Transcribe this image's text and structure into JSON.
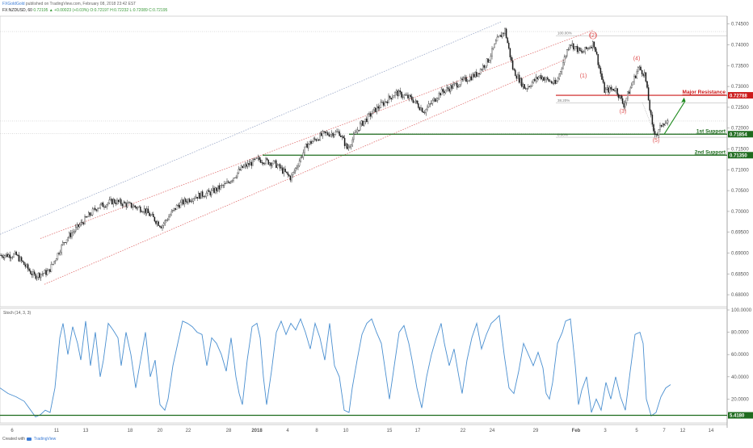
{
  "header": {
    "author": "FXGoldGold",
    "published": "published on TradingView.com, February 08, 2018 23:42 EST",
    "symbol": "FX:NZDUSD, 60",
    "quote": "0.72195 ▲ +0.00023 (+0.03%) O:0.72197 H:0.72232 L:0.72089 C:0.72195"
  },
  "footer": {
    "created_with": "Created with",
    "brand": "TradingView"
  },
  "colors": {
    "candle": "#1a1a1a",
    "resistance": "#cc1a1a",
    "support": "#1e6b1e",
    "channel": "#e07070",
    "stoch": "#4a8fd0",
    "wave_label": "#e05050",
    "grid": "#c8c8c8"
  },
  "chart_data": [
    {
      "type": "candlestick",
      "title": "",
      "ylim": [
        0.6775,
        0.7465
      ],
      "y_ticks": [
        "0.74500",
        "0.74000",
        "0.73500",
        "0.73000",
        "0.72500",
        "0.72000",
        "0.71500",
        "0.71000",
        "0.70500",
        "0.70000",
        "0.69500",
        "0.69000",
        "0.68500",
        "0.68000"
      ],
      "y_tick_values": [
        0.745,
        0.74,
        0.735,
        0.73,
        0.725,
        0.72,
        0.715,
        0.71,
        0.705,
        0.7,
        0.695,
        0.69,
        0.685,
        0.68
      ],
      "x_ticks": [
        "6",
        "11",
        "13",
        "18",
        "20",
        "22",
        "28",
        "2018",
        "4",
        "8",
        "10",
        "15",
        "17",
        "22",
        "24",
        "29",
        "Feb",
        "3",
        "5",
        "7",
        "12",
        "14"
      ],
      "path": [
        [
          0,
          0.6895
        ],
        [
          20,
          0.6895
        ],
        [
          42,
          0.6845
        ],
        [
          60,
          0.6855
        ],
        [
          80,
          0.693
        ],
        [
          100,
          0.697
        ],
        [
          120,
          0.701
        ],
        [
          140,
          0.7025
        ],
        [
          160,
          0.7015
        ],
        [
          178,
          0.7005
        ],
        [
          200,
          0.6965
        ],
        [
          220,
          0.7015
        ],
        [
          240,
          0.7035
        ],
        [
          260,
          0.7045
        ],
        [
          280,
          0.7065
        ],
        [
          300,
          0.7105
        ],
        [
          320,
          0.7125
        ],
        [
          340,
          0.7115
        ],
        [
          360,
          0.708
        ],
        [
          380,
          0.716
        ],
        [
          400,
          0.7185
        ],
        [
          420,
          0.719
        ],
        [
          430,
          0.715
        ],
        [
          445,
          0.7205
        ],
        [
          465,
          0.7245
        ],
        [
          490,
          0.7285
        ],
        [
          510,
          0.727
        ],
        [
          525,
          0.724
        ],
        [
          545,
          0.7285
        ],
        [
          565,
          0.7305
        ],
        [
          590,
          0.733
        ],
        [
          605,
          0.7365
        ],
        [
          615,
          0.741
        ],
        [
          625,
          0.7435
        ],
        [
          635,
          0.734
        ],
        [
          650,
          0.7295
        ],
        [
          668,
          0.7325
        ],
        [
          688,
          0.7305
        ],
        [
          705,
          0.7405
        ],
        [
          720,
          0.738
        ],
        [
          735,
          0.7405
        ],
        [
          748,
          0.729
        ],
        [
          762,
          0.7295
        ],
        [
          772,
          0.7255
        ],
        [
          790,
          0.7345
        ],
        [
          798,
          0.733
        ],
        [
          808,
          0.7195
        ],
        [
          814,
          0.7185
        ],
        [
          820,
          0.7215
        ],
        [
          828,
          0.721
        ]
      ],
      "levels": [
        {
          "label": "Major Resistance",
          "value": 0.72788,
          "value_text": "0.72788",
          "kind": "resistance"
        },
        {
          "label": "1st Support",
          "value": 0.71854,
          "value_text": "0.71854",
          "kind": "support"
        },
        {
          "label": "2nd Support",
          "value": 0.7135,
          "value_text": "0.71350",
          "kind": "support"
        }
      ],
      "fibonacci": [
        {
          "label": "100.00%",
          "value": 0.7422
        },
        {
          "label": "38.20%",
          "value": 0.7261
        },
        {
          "label": "0.00%",
          "value": 0.7178
        }
      ],
      "wave_labels": [
        {
          "label": "(1)",
          "x": 722,
          "y": 0.7322
        },
        {
          "label": "(2)",
          "x": 734,
          "y": 0.7418
        },
        {
          "label": "(3)",
          "x": 771,
          "y": 0.7236
        },
        {
          "label": "(4)",
          "x": 788,
          "y": 0.7363
        },
        {
          "label": "(5)",
          "x": 812,
          "y": 0.7167
        }
      ]
    },
    {
      "type": "line",
      "title": "Stoch (14, 3, 3)",
      "ylim": [
        0,
        100
      ],
      "y_ticks": [
        "100.0000",
        "80.0000",
        "60.0000",
        "40.0000",
        "20.0000"
      ],
      "y_tick_values": [
        100,
        80,
        60,
        40,
        20
      ],
      "level": {
        "value": 5.418,
        "value_text": "5.4180"
      },
      "points": [
        [
          0,
          30
        ],
        [
          10,
          25
        ],
        [
          20,
          22
        ],
        [
          30,
          18
        ],
        [
          38,
          10
        ],
        [
          44,
          4
        ],
        [
          50,
          6
        ],
        [
          56,
          10
        ],
        [
          62,
          8
        ],
        [
          68,
          30
        ],
        [
          74,
          75
        ],
        [
          78,
          88
        ],
        [
          84,
          60
        ],
        [
          90,
          85
        ],
        [
          96,
          70
        ],
        [
          100,
          55
        ],
        [
          106,
          90
        ],
        [
          112,
          50
        ],
        [
          118,
          80
        ],
        [
          124,
          40
        ],
        [
          128,
          55
        ],
        [
          134,
          88
        ],
        [
          140,
          82
        ],
        [
          146,
          75
        ],
        [
          150,
          50
        ],
        [
          156,
          80
        ],
        [
          162,
          60
        ],
        [
          168,
          30
        ],
        [
          174,
          55
        ],
        [
          180,
          80
        ],
        [
          186,
          40
        ],
        [
          192,
          55
        ],
        [
          198,
          15
        ],
        [
          204,
          10
        ],
        [
          208,
          20
        ],
        [
          214,
          50
        ],
        [
          220,
          70
        ],
        [
          226,
          90
        ],
        [
          232,
          88
        ],
        [
          238,
          85
        ],
        [
          244,
          80
        ],
        [
          250,
          78
        ],
        [
          256,
          50
        ],
        [
          262,
          75
        ],
        [
          268,
          70
        ],
        [
          274,
          60
        ],
        [
          280,
          45
        ],
        [
          286,
          75
        ],
        [
          292,
          40
        ],
        [
          296,
          25
        ],
        [
          300,
          15
        ],
        [
          306,
          55
        ],
        [
          312,
          85
        ],
        [
          318,
          88
        ],
        [
          322,
          75
        ],
        [
          326,
          40
        ],
        [
          330,
          15
        ],
        [
          336,
          45
        ],
        [
          342,
          80
        ],
        [
          348,
          90
        ],
        [
          354,
          78
        ],
        [
          360,
          88
        ],
        [
          366,
          82
        ],
        [
          372,
          92
        ],
        [
          378,
          80
        ],
        [
          384,
          65
        ],
        [
          390,
          88
        ],
        [
          396,
          75
        ],
        [
          402,
          55
        ],
        [
          408,
          88
        ],
        [
          414,
          50
        ],
        [
          420,
          40
        ],
        [
          426,
          10
        ],
        [
          432,
          8
        ],
        [
          436,
          30
        ],
        [
          442,
          55
        ],
        [
          448,
          78
        ],
        [
          454,
          88
        ],
        [
          460,
          92
        ],
        [
          466,
          80
        ],
        [
          472,
          70
        ],
        [
          478,
          40
        ],
        [
          482,
          20
        ],
        [
          488,
          50
        ],
        [
          494,
          80
        ],
        [
          500,
          86
        ],
        [
          506,
          70
        ],
        [
          510,
          55
        ],
        [
          516,
          30
        ],
        [
          522,
          12
        ],
        [
          528,
          40
        ],
        [
          534,
          60
        ],
        [
          540,
          75
        ],
        [
          546,
          88
        ],
        [
          550,
          70
        ],
        [
          556,
          50
        ],
        [
          562,
          65
        ],
        [
          568,
          40
        ],
        [
          572,
          25
        ],
        [
          578,
          55
        ],
        [
          584,
          75
        ],
        [
          590,
          88
        ],
        [
          596,
          65
        ],
        [
          602,
          78
        ],
        [
          608,
          88
        ],
        [
          614,
          92
        ],
        [
          618,
          95
        ],
        [
          624,
          60
        ],
        [
          630,
          30
        ],
        [
          636,
          25
        ],
        [
          642,
          45
        ],
        [
          648,
          70
        ],
        [
          654,
          60
        ],
        [
          660,
          50
        ],
        [
          666,
          62
        ],
        [
          672,
          48
        ],
        [
          676,
          25
        ],
        [
          680,
          20
        ],
        [
          684,
          35
        ],
        [
          690,
          70
        ],
        [
          696,
          80
        ],
        [
          700,
          90
        ],
        [
          706,
          92
        ],
        [
          712,
          50
        ],
        [
          716,
          15
        ],
        [
          720,
          28
        ],
        [
          726,
          40
        ],
        [
          732,
          8
        ],
        [
          738,
          20
        ],
        [
          744,
          10
        ],
        [
          750,
          35
        ],
        [
          756,
          20
        ],
        [
          762,
          40
        ],
        [
          768,
          22
        ],
        [
          774,
          10
        ],
        [
          780,
          45
        ],
        [
          786,
          78
        ],
        [
          792,
          80
        ],
        [
          796,
          70
        ],
        [
          800,
          20
        ],
        [
          806,
          5
        ],
        [
          812,
          8
        ],
        [
          818,
          22
        ],
        [
          824,
          30
        ],
        [
          830,
          33
        ]
      ]
    }
  ]
}
